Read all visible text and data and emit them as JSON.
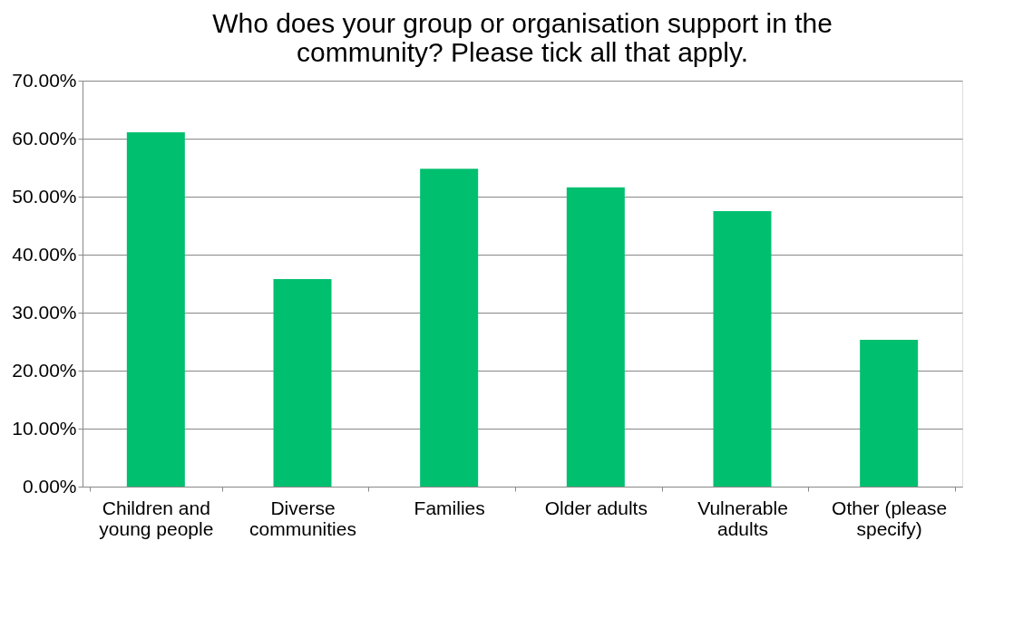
{
  "chart_data": {
    "type": "bar",
    "title": "Who does your group or organisation support in the community? Please tick all that apply.",
    "categories": [
      "Children and young people",
      "Diverse communities",
      "Families",
      "Older adults",
      "Vulnerable adults",
      "Other (please specify)"
    ],
    "values": [
      61.1,
      35.8,
      54.8,
      51.6,
      47.5,
      25.3
    ],
    "color": "#00bf6f",
    "ylim": [
      0,
      70
    ],
    "yticks": [
      {
        "value": 0,
        "label": "0.00%"
      },
      {
        "value": 10,
        "label": "10.00%"
      },
      {
        "value": 20,
        "label": "20.00%"
      },
      {
        "value": 30,
        "label": "30.00%"
      },
      {
        "value": 40,
        "label": "40.00%"
      },
      {
        "value": 50,
        "label": "50.00%"
      },
      {
        "value": 60,
        "label": "60.00%"
      },
      {
        "value": 70,
        "label": "70.00%"
      }
    ],
    "grid": "y"
  }
}
